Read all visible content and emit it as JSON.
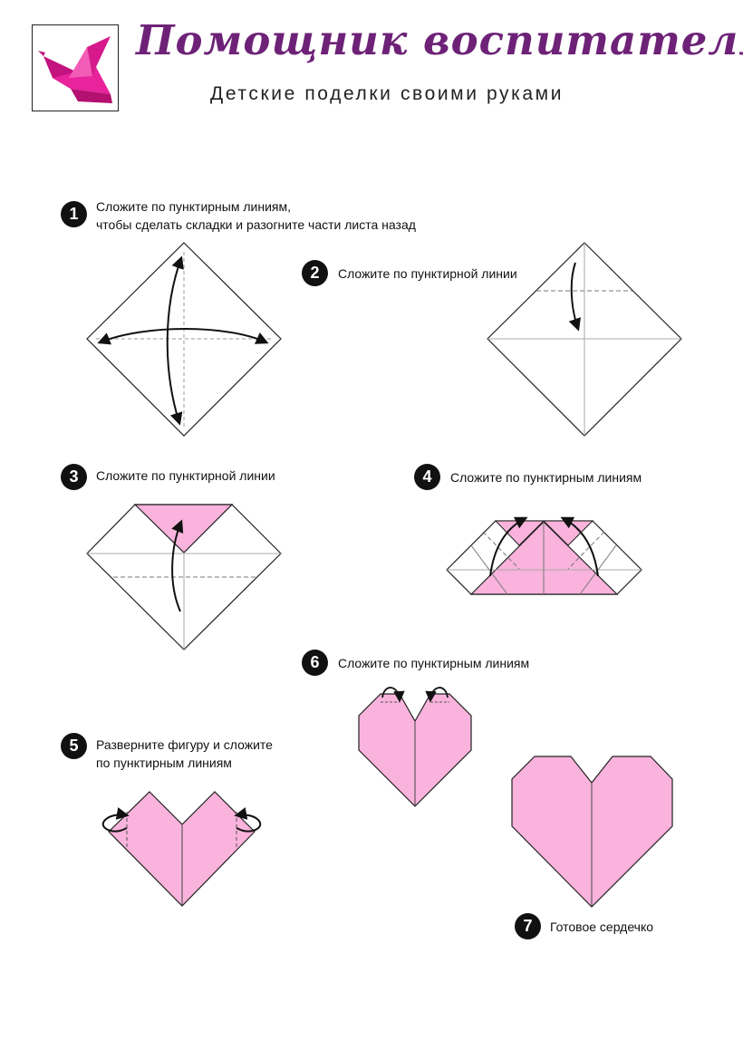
{
  "header": {
    "title": "Помощник воспитателя",
    "subtitle": "Детские поделки своими руками"
  },
  "colors": {
    "brand": "#6d2277",
    "paper_pink": "#f9b3dc",
    "crane_pink": "#e8239b",
    "line": "#333333"
  },
  "steps": [
    {
      "number": "1",
      "line1": "Сложите по пунктирным линиям,",
      "line2": "чтобы сделать складки и разогните части листа назад"
    },
    {
      "number": "2",
      "line1": "Сложите по пунктирной линии"
    },
    {
      "number": "3",
      "line1": "Сложите по пунктирной линии"
    },
    {
      "number": "4",
      "line1": "Сложите по пунктирным линиям"
    },
    {
      "number": "5",
      "line1": "Разверните фигуру и сложите",
      "line2": "по пунктирным линиям"
    },
    {
      "number": "6",
      "line1": "Сложите по пунктирным линиям"
    },
    {
      "number": "7",
      "line1": "Готовое сердечко"
    }
  ]
}
